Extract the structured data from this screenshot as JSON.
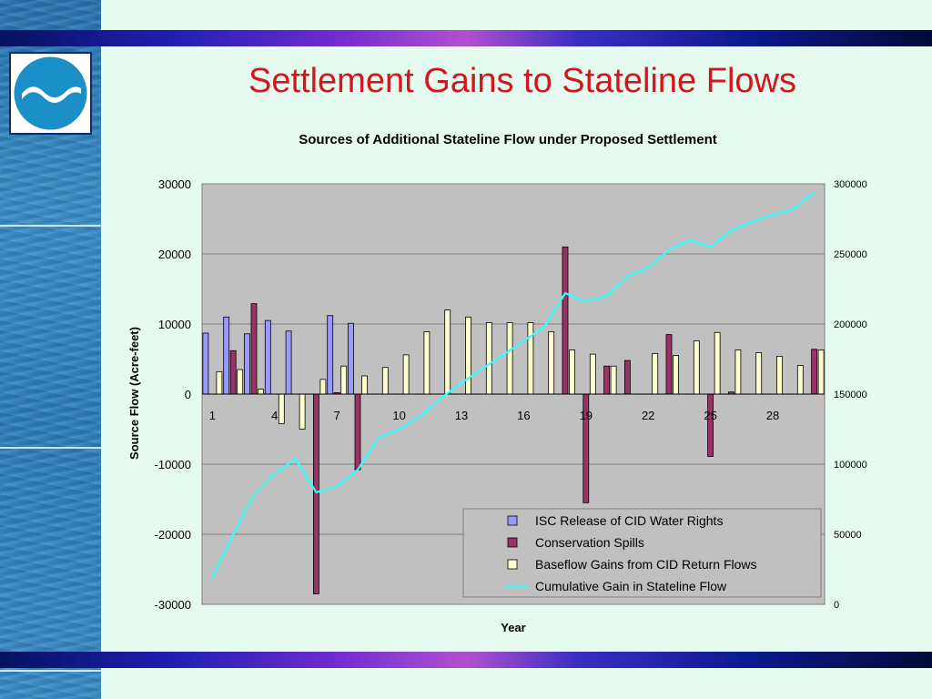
{
  "slide": {
    "title": "Settlement Gains to Stateline Flows"
  },
  "colors": {
    "title": "#d4161c",
    "isc": "#9999ff",
    "spills": "#993366",
    "baseflow": "#ffffcc",
    "cumulative": "#33ffff",
    "plot_bg": "#c0c0c0"
  },
  "logo": {
    "icon": "water-wave-logo-icon"
  },
  "chart_data": {
    "type": "bar",
    "title": "Sources of Additional Stateline Flow under Proposed Settlement",
    "xlabel": "Year",
    "ylabel": "Source Flow (Acre-feet)",
    "ylim": [
      -30000,
      30000
    ],
    "y2lim": [
      0,
      300000
    ],
    "yticks": [
      "30000",
      "20000",
      "10000",
      "0",
      "-10000",
      "-20000",
      "-30000"
    ],
    "y2ticks": [
      "300000",
      "250000",
      "200000",
      "150000",
      "100000",
      "50000",
      "0"
    ],
    "xticks": [
      "1",
      "4",
      "7",
      "10",
      "13",
      "16",
      "19",
      "22",
      "25",
      "28"
    ],
    "categories": [
      1,
      2,
      3,
      4,
      5,
      6,
      7,
      8,
      9,
      10,
      11,
      12,
      13,
      14,
      15,
      16,
      17,
      18,
      19,
      20,
      21,
      22,
      23,
      24,
      25,
      26,
      27,
      28,
      29,
      30
    ],
    "grid": true,
    "legend_position": "bottom-right",
    "series": [
      {
        "name": "ISC Release of CID Water Rights",
        "axis": "left",
        "kind": "bar",
        "values": [
          8700,
          11000,
          8600,
          10500,
          9000,
          0,
          11200,
          10100,
          0,
          0,
          0,
          0,
          0,
          0,
          0,
          0,
          0,
          0,
          0,
          0,
          0,
          0,
          0,
          0,
          0,
          0,
          0,
          0,
          0,
          0
        ]
      },
      {
        "name": "Conservation Spills",
        "axis": "left",
        "kind": "bar",
        "values": [
          0,
          6200,
          12900,
          0,
          0,
          -28500,
          200,
          -10800,
          0,
          0,
          0,
          0,
          0,
          0,
          0,
          0,
          0,
          21000,
          -15500,
          4000,
          4800,
          0,
          8500,
          0,
          -8900,
          300,
          0,
          0,
          0,
          6400
        ]
      },
      {
        "name": "Baseflow Gains from CID Return Flows",
        "axis": "left",
        "kind": "bar",
        "values": [
          3200,
          3500,
          700,
          -4200,
          -5000,
          2100,
          4000,
          2600,
          3800,
          5600,
          8900,
          12000,
          11000,
          10200,
          10200,
          10200,
          8900,
          6300,
          5700,
          4000,
          0,
          5800,
          5500,
          7600,
          8800,
          6300,
          5900,
          5400,
          4100,
          6300
        ]
      },
      {
        "name": "Cumulative Gain in Stateline Flow",
        "axis": "right",
        "kind": "line",
        "values": [
          19000,
          50000,
          78000,
          93000,
          104000,
          80000,
          84000,
          96000,
          119000,
          125000,
          134000,
          147000,
          158000,
          168000,
          178000,
          188000,
          198000,
          222000,
          216000,
          220000,
          234000,
          240000,
          253000,
          260000,
          255000,
          267000,
          273000,
          278000,
          282000,
          294000
        ]
      }
    ]
  }
}
